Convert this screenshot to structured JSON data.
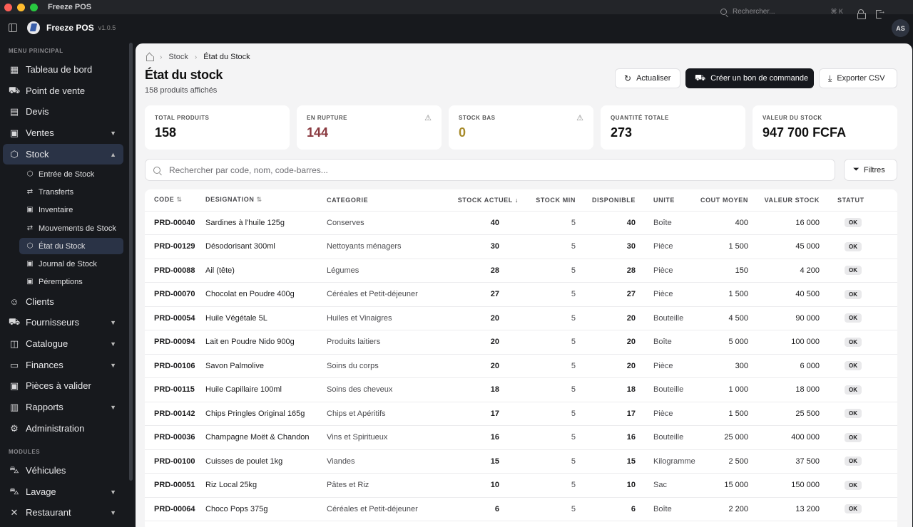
{
  "window": {
    "title": "Freeze POS"
  },
  "header": {
    "app_name": "Freeze POS",
    "version": "v1.0.5",
    "search_placeholder": "Rechercher...",
    "search_shortcut": "⌘ K",
    "avatar_initials": "AS"
  },
  "sidebar": {
    "section_main": "MENU PRINCIPAL",
    "section_modules": "MODULES",
    "items": [
      {
        "label": "Tableau de bord",
        "icon": "dashboard-icon"
      },
      {
        "label": "Point de vente",
        "icon": "cart-icon"
      },
      {
        "label": "Devis",
        "icon": "document-icon"
      },
      {
        "label": "Ventes",
        "icon": "clipboard-icon"
      },
      {
        "label": "Stock",
        "icon": "box-icon"
      },
      {
        "label": "Clients",
        "icon": "users-icon"
      },
      {
        "label": "Fournisseurs",
        "icon": "truck-icon"
      },
      {
        "label": "Catalogue",
        "icon": "catalog-icon"
      },
      {
        "label": "Finances",
        "icon": "wallet-icon"
      },
      {
        "label": "Pièces à valider",
        "icon": "clipboard-check-icon"
      },
      {
        "label": "Rapports",
        "icon": "chart-icon"
      },
      {
        "label": "Administration",
        "icon": "gear-icon"
      }
    ],
    "stock_sub": [
      {
        "label": "Entrée de Stock",
        "icon": "box-icon"
      },
      {
        "label": "Transferts",
        "icon": "transfer-icon"
      },
      {
        "label": "Inventaire",
        "icon": "clipboard-icon"
      },
      {
        "label": "Mouvements de Stock",
        "icon": "transfer-icon"
      },
      {
        "label": "État du Stock",
        "icon": "box-icon"
      },
      {
        "label": "Journal de Stock",
        "icon": "clipboard-icon"
      },
      {
        "label": "Péremptions",
        "icon": "clipboard-icon"
      }
    ],
    "modules": [
      {
        "label": "Véhicules",
        "icon": "car-icon"
      },
      {
        "label": "Lavage",
        "icon": "car-wash-icon"
      },
      {
        "label": "Restaurant",
        "icon": "utensils-icon"
      }
    ]
  },
  "main": {
    "breadcrumb": [
      "Stock",
      "État du Stock"
    ],
    "title": "État du stock",
    "subtitle": "158 produits affichés",
    "buttons": {
      "refresh": "Actualiser",
      "order": "Créer un bon de commande",
      "export": "Exporter CSV",
      "filters": "Filtres"
    },
    "stats": [
      {
        "label": "TOTAL PRODUITS",
        "value": "158",
        "color": "#111111"
      },
      {
        "label": "EN RUPTURE",
        "value": "144",
        "color": "#8a3a40"
      },
      {
        "label": "STOCK BAS",
        "value": "0",
        "color": "#a78a2a"
      },
      {
        "label": "QUANTITÉ TOTALE",
        "value": "273",
        "color": "#111111"
      },
      {
        "label": "VALEUR DU STOCK",
        "value": "947 700 FCFA",
        "color": "#111111"
      }
    ],
    "search_placeholder": "Rechercher par code, nom, code-barres...",
    "table": {
      "columns": [
        "CODE",
        "DESIGNATION",
        "CATEGORIE",
        "STOCK ACTUEL",
        "STOCK MIN",
        "DISPONIBLE",
        "UNITE",
        "COUT MOYEN",
        "VALEUR STOCK",
        "STATUT"
      ],
      "rows": [
        [
          "PRD-00040",
          "Sardines à l'huile 125g",
          "Conserves",
          "40",
          "5",
          "40",
          "Boîte",
          "400",
          "16 000",
          "OK"
        ],
        [
          "PRD-00129",
          "Désodorisant 300ml",
          "Nettoyants ménagers",
          "30",
          "5",
          "30",
          "Pièce",
          "1 500",
          "45 000",
          "OK"
        ],
        [
          "PRD-00088",
          "Ail (tête)",
          "Légumes",
          "28",
          "5",
          "28",
          "Pièce",
          "150",
          "4 200",
          "OK"
        ],
        [
          "PRD-00070",
          "Chocolat en Poudre 400g",
          "Céréales et Petit-déjeuner",
          "27",
          "5",
          "27",
          "Pièce",
          "1 500",
          "40 500",
          "OK"
        ],
        [
          "PRD-00054",
          "Huile Végétale 5L",
          "Huiles et Vinaigres",
          "20",
          "5",
          "20",
          "Bouteille",
          "4 500",
          "90 000",
          "OK"
        ],
        [
          "PRD-00094",
          "Lait en Poudre Nido 900g",
          "Produits laitiers",
          "20",
          "5",
          "20",
          "Boîte",
          "5 000",
          "100 000",
          "OK"
        ],
        [
          "PRD-00106",
          "Savon Palmolive",
          "Soins du corps",
          "20",
          "5",
          "20",
          "Pièce",
          "300",
          "6 000",
          "OK"
        ],
        [
          "PRD-00115",
          "Huile Capillaire 100ml",
          "Soins des cheveux",
          "18",
          "5",
          "18",
          "Bouteille",
          "1 000",
          "18 000",
          "OK"
        ],
        [
          "PRD-00142",
          "Chips Pringles Original 165g",
          "Chips et Apéritifs",
          "17",
          "5",
          "17",
          "Pièce",
          "1 500",
          "25 500",
          "OK"
        ],
        [
          "PRD-00036",
          "Champagne Moët & Chandon",
          "Vins et Spiritueux",
          "16",
          "5",
          "16",
          "Bouteille",
          "25 000",
          "400 000",
          "OK"
        ],
        [
          "PRD-00100",
          "Cuisses de poulet 1kg",
          "Viandes",
          "15",
          "5",
          "15",
          "Kilogramme",
          "2 500",
          "37 500",
          "OK"
        ],
        [
          "PRD-00051",
          "Riz Local 25kg",
          "Pâtes et Riz",
          "10",
          "5",
          "10",
          "Sac",
          "15 000",
          "150 000",
          "OK"
        ],
        [
          "PRD-00064",
          "Choco Pops 375g",
          "Céréales et Petit-déjeuner",
          "6",
          "5",
          "6",
          "Boîte",
          "2 200",
          "13 200",
          "OK"
        ]
      ]
    }
  }
}
